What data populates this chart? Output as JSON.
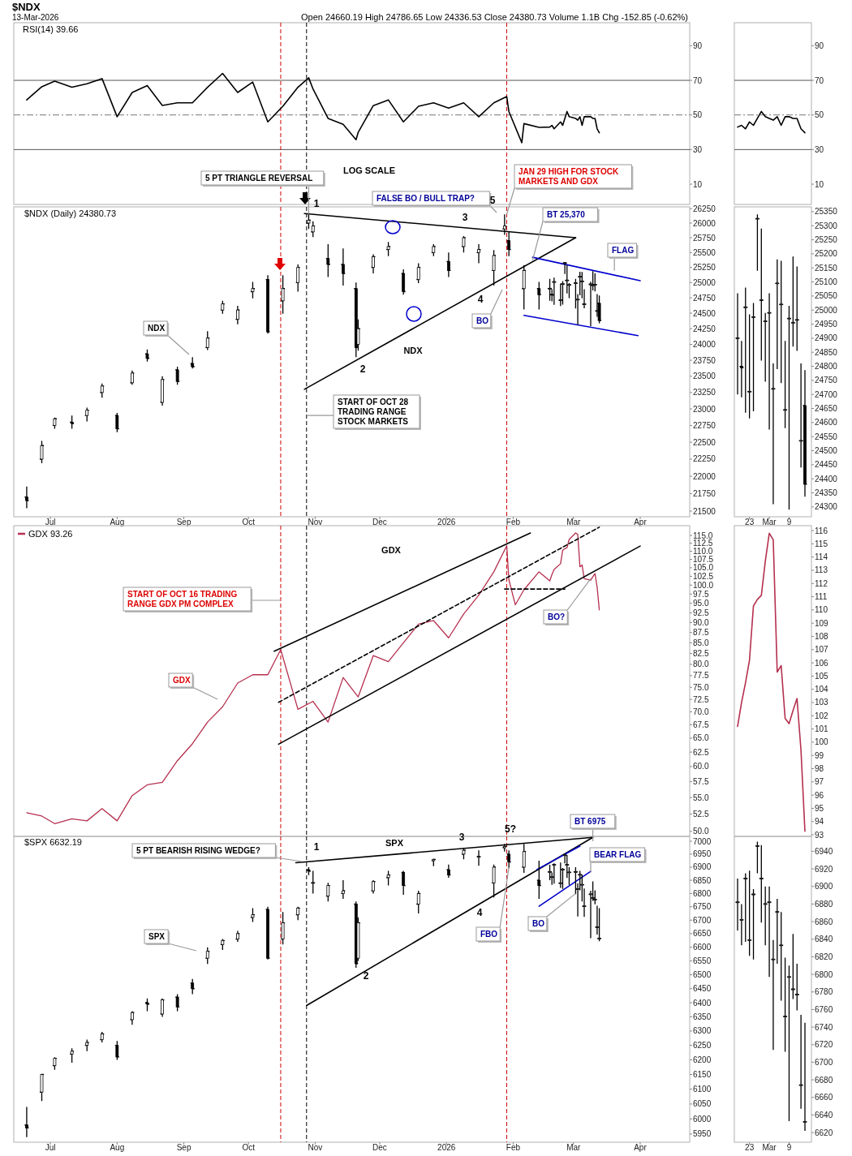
{
  "chart_data": [
    {
      "type": "line",
      "title": "$NDX",
      "subtitle": "13-Mar-2026",
      "annotations": [
        "Open 24660.19 High 24786.65 Low 24336.53 Close 24380.73 Volume 1.1B Chg -152.85 (-0.62%)",
        "RSI(14) 39.66"
      ],
      "xlim": [
        "2025-06-14",
        "2026-04-24"
      ],
      "ylim": [
        -1.7,
        103.3
      ],
      "yticks": [
        10,
        30,
        50,
        70,
        90
      ],
      "series": [
        {
          "color": "#000000",
          "x": [
            "2025-06-20",
            "2025-06-27",
            "2025-07-03",
            "2025-07-11",
            "2025-07-18",
            "2025-07-25",
            "2025-08-01",
            "2025-08-08",
            "2025-08-15",
            "2025-08-22",
            "2025-08-29",
            "2025-09-05",
            "2025-09-12",
            "2025-09-19",
            "2025-09-26",
            "2025-10-03",
            "2025-10-10",
            "2025-10-17",
            "2025-10-24",
            "2025-10-29",
            "2025-10-31",
            "2025-11-07",
            "2025-11-14",
            "2025-11-20",
            "2025-11-21",
            "2025-11-28",
            "2025-12-05",
            "2025-12-12",
            "2025-12-19",
            "2025-12-26",
            "2026-01-02",
            "2026-01-09",
            "2026-01-16",
            "2026-01-23",
            "2026-01-29",
            "2026-01-30",
            "2026-02-05",
            "2026-02-06",
            "2026-02-13",
            "2026-02-18",
            "2026-02-19",
            "2026-02-20",
            "2026-02-23",
            "2026-02-24",
            "2026-02-25",
            "2026-02-26",
            "2026-02-27",
            "2026-03-02",
            "2026-03-03",
            "2026-03-04",
            "2026-03-05",
            "2026-03-06",
            "2026-03-09",
            "2026-03-10",
            "2026-03-11",
            "2026-03-12",
            "2026-03-13"
          ],
          "values": [
            58.7,
            66.3,
            69.5,
            66,
            68,
            71,
            49,
            63,
            67,
            55.5,
            57,
            57,
            66,
            74,
            63,
            69,
            46,
            55,
            66,
            71.5,
            65,
            48,
            44.6,
            35.7,
            40,
            55.4,
            58.7,
            46,
            55,
            57,
            54,
            57,
            49,
            57,
            60.6,
            52,
            34,
            45,
            42.8,
            43,
            44,
            42,
            46,
            44,
            48,
            52,
            49,
            48,
            47,
            49,
            44,
            49,
            49,
            48,
            48,
            42,
            39.7
          ]
        }
      ],
      "ref_lines": [
        {
          "axis": "y",
          "value": 70,
          "color": "#555555",
          "line_style": "solid"
        },
        {
          "axis": "y",
          "value": 50,
          "color": "#777777",
          "line_style": "dashed"
        },
        {
          "axis": "y",
          "value": 30,
          "color": "#555555",
          "line_style": "solid"
        },
        {
          "axis": "x",
          "value": "2025-10-16",
          "color": "#cc0000",
          "line_style": "dashed"
        },
        {
          "axis": "x",
          "value": "2025-10-28",
          "color": "#000000",
          "line_style": "dashed"
        },
        {
          "axis": "x",
          "value": "2026-01-29",
          "color": "#cc0000",
          "line_style": "dashed"
        }
      ]
    },
    {
      "type": "candlestick",
      "title": "$NDX (Daily) 24380.73",
      "log": "y",
      "color": "#000000",
      "xlim": [
        "2025-06-14",
        "2026-04-24"
      ],
      "ylim": [
        21420,
        26280
      ],
      "xticks": [
        {
          "value": "2025-07-01",
          "label": "Jul"
        },
        {
          "value": "2025-08-01",
          "label": "Aug"
        },
        {
          "value": "2025-09-01",
          "label": "Sep"
        },
        {
          "value": "2025-10-01",
          "label": "Oct"
        },
        {
          "value": "2025-11-01",
          "label": "Nov"
        },
        {
          "value": "2025-12-01",
          "label": "Dec"
        },
        {
          "value": "2026-01-01",
          "label": "2026"
        },
        {
          "value": "2026-02-01",
          "label": "Feb"
        },
        {
          "value": "2026-03-01",
          "label": "Mar"
        },
        {
          "value": "2026-04-01",
          "label": "Apr"
        }
      ],
      "yticks": [
        21500,
        21750,
        22000,
        22250,
        22500,
        22750,
        23000,
        23250,
        23500,
        23750,
        24000,
        24250,
        24500,
        24750,
        25000,
        25250,
        25500,
        25750,
        26000,
        26250
      ],
      "x": [
        "2025-06-20",
        "2025-06-27",
        "2025-07-03",
        "2025-07-11",
        "2025-07-18",
        "2025-07-25",
        "2025-08-01",
        "2025-08-08",
        "2025-08-15",
        "2025-08-22",
        "2025-08-29",
        "2025-09-05",
        "2025-09-12",
        "2025-09-19",
        "2025-09-26",
        "2025-10-03",
        "2025-10-10",
        "2025-10-17",
        "2025-10-24",
        "2025-10-29",
        "2025-10-31",
        "2025-11-07",
        "2025-11-14",
        "2025-11-20",
        "2025-11-21",
        "2025-11-28",
        "2025-12-05",
        "2025-12-12",
        "2025-12-19",
        "2025-12-26",
        "2026-01-02",
        "2026-01-09",
        "2026-01-16",
        "2026-01-23",
        "2026-01-28",
        "2026-01-30",
        "2026-02-06",
        "2026-02-13",
        "2026-02-18",
        "2026-02-19",
        "2026-02-20",
        "2026-02-23",
        "2026-02-24",
        "2026-02-25",
        "2026-02-26",
        "2026-02-27",
        "2026-03-02",
        "2026-03-03",
        "2026-03-04",
        "2026-03-05",
        "2026-03-06",
        "2026-03-09",
        "2026-03-10",
        "2026-03-11",
        "2026-03-12",
        "2026-03-13"
      ],
      "ohlc": [
        [
          21700,
          21850,
          21540,
          21650
        ],
        [
          22250,
          22520,
          22190,
          22450
        ],
        [
          22750,
          22870,
          22700,
          22850
        ],
        [
          22800,
          22900,
          22700,
          22780
        ],
        [
          22900,
          23020,
          22810,
          22980
        ],
        [
          23250,
          23390,
          23170,
          23350
        ],
        [
          22900,
          22940,
          22650,
          22700
        ],
        [
          23400,
          23590,
          23370,
          23550
        ],
        [
          23850,
          23920,
          23730,
          23780
        ],
        [
          23100,
          23500,
          23050,
          23450
        ],
        [
          23600,
          23650,
          23370,
          23420
        ],
        [
          23700,
          23800,
          23620,
          23650
        ],
        [
          23950,
          24210,
          23910,
          24100
        ],
        [
          24550,
          24700,
          24490,
          24650
        ],
        [
          24400,
          24620,
          24320,
          24550
        ],
        [
          24850,
          25010,
          24740,
          24900
        ],
        [
          25050,
          25120,
          24170,
          24200
        ],
        [
          24700,
          25120,
          24490,
          24900
        ],
        [
          25000,
          25300,
          24850,
          25250
        ],
        [
          26000,
          26180,
          25900,
          26050
        ],
        [
          25850,
          26030,
          25760,
          25950
        ],
        [
          25400,
          25640,
          25090,
          25300
        ],
        [
          25300,
          25570,
          24950,
          25150
        ],
        [
          24900,
          25000,
          23800,
          23950
        ],
        [
          24000,
          24400,
          23900,
          24250
        ],
        [
          25250,
          25470,
          25150,
          25430
        ],
        [
          25550,
          25680,
          25440,
          25600
        ],
        [
          25150,
          25220,
          24800,
          24850
        ],
        [
          25050,
          25320,
          24990,
          25250
        ],
        [
          25500,
          25640,
          25440,
          25600
        ],
        [
          25350,
          25500,
          25090,
          25200
        ],
        [
          25600,
          25780,
          25500,
          25750
        ],
        [
          25500,
          25640,
          25320,
          25550
        ],
        [
          25200,
          25540,
          24950,
          25450
        ],
        [
          25900,
          26150,
          25800,
          25950
        ],
        [
          25700,
          25860,
          25440,
          25550
        ],
        [
          24900,
          25290,
          24560,
          25200
        ],
        [
          24900,
          25010,
          24560,
          24800
        ],
        [
          24900,
          25060,
          24700,
          24900
        ],
        [
          24800,
          24890,
          24690,
          24795
        ],
        [
          25010,
          25080,
          24635,
          25010
        ],
        [
          24710,
          24985,
          24615,
          24710
        ],
        [
          24975,
          25025,
          24640,
          24975
        ],
        [
          25325,
          25340,
          25140,
          25325
        ],
        [
          25035,
          25290,
          24820,
          25035
        ],
        [
          24960,
          24990,
          24745,
          24960
        ],
        [
          24990,
          25060,
          24575,
          24990
        ],
        [
          24720,
          24810,
          24310,
          24720
        ],
        [
          25095,
          25180,
          24790,
          25095
        ],
        [
          25020,
          25175,
          24740,
          25020
        ],
        [
          24645,
          24890,
          24580,
          24645
        ],
        [
          24970,
          25015,
          24290,
          24970
        ],
        [
          24955,
          25190,
          24870,
          24955
        ],
        [
          24965,
          25155,
          24855,
          24965
        ],
        [
          24535,
          24810,
          24440,
          24535
        ],
        [
          24660.19,
          24786.65,
          24336.53,
          24380.73
        ]
      ],
      "series": [
        {
          "type": "line",
          "color": "#000000",
          "line_style": "solid",
          "x": [
            "2025-10-27",
            "2026-03-02"
          ],
          "values": [
            26165,
            25750
          ]
        },
        {
          "type": "line",
          "color": "#000000",
          "line_style": "solid",
          "x": [
            "2025-10-27",
            "2026-03-02"
          ],
          "values": [
            23300,
            25750
          ]
        },
        {
          "type": "line",
          "color": "#0000cc",
          "line_style": "solid",
          "x": [
            "2026-02-10",
            "2026-04-01"
          ],
          "values": [
            25420,
            25030
          ]
        },
        {
          "type": "line",
          "color": "#0000cc",
          "line_style": "solid",
          "x": [
            "2026-02-06",
            "2026-03-31"
          ],
          "values": [
            24465,
            24140
          ]
        }
      ],
      "ref_lines": [
        {
          "axis": "x",
          "value": "2025-10-16",
          "color": "#cc0000",
          "line_style": "dashed"
        },
        {
          "axis": "x",
          "value": "2025-10-28",
          "color": "#000000",
          "line_style": "dashed"
        },
        {
          "axis": "x",
          "value": "2026-01-29",
          "color": "#cc0000",
          "line_style": "dashed"
        }
      ],
      "annotations": [
        "LOG SCALE",
        {
          "text": "5 PT TRIANGLE REVERSAL",
          "x": "2025-10-29",
          "y": 26150
        },
        {
          "text": "JAN 29 HIGH FOR STOCK MARKETS AND GDX",
          "x": "2026-01-29",
          "y": 26150
        },
        "FALSE BO / BULL TRAP?",
        {
          "text": "BT 25,370",
          "x": "2026-02-10",
          "y": 25370
        },
        {
          "text": "FLAG",
          "x": "2026-03-20",
          "y": 25200
        },
        "BO",
        "NDX",
        {
          "text": "START OF OCT 28 TRADING RANGE STOCK MARKETS",
          "x": "2025-10-28",
          "y": 22900
        },
        "NDX",
        {
          "text": "1",
          "x": "2025-10-29",
          "y": 26180
        },
        {
          "text": "2",
          "x": "2025-11-20",
          "y": 23800
        },
        {
          "text": "3",
          "x": "2026-01-09",
          "y": 25780
        },
        "4",
        {
          "text": "5",
          "x": "2026-01-28",
          "y": 26150
        }
      ]
    },
    {
      "type": "line",
      "log": "y",
      "legend": "top left",
      "xlim": [
        "2025-06-14",
        "2026-04-24"
      ],
      "ylim": [
        49.3,
        118.2
      ],
      "yticks": [
        {
          "value": 50,
          "label": "50.0"
        },
        {
          "value": 52.5,
          "label": "52.5"
        },
        {
          "value": 55,
          "label": "55.0"
        },
        {
          "value": 57.5,
          "label": "57.5"
        },
        {
          "value": 60,
          "label": "60.0"
        },
        {
          "value": 62.5,
          "label": "62.5"
        },
        {
          "value": 65,
          "label": "65.0"
        },
        {
          "value": 67.5,
          "label": "67.5"
        },
        {
          "value": 70,
          "label": "70.0"
        },
        {
          "value": 72.5,
          "label": "72.5"
        },
        {
          "value": 75,
          "label": "75.0"
        },
        {
          "value": 77.5,
          "label": "77.5"
        },
        {
          "value": 80,
          "label": "80.0"
        },
        {
          "value": 82.5,
          "label": "82.5"
        },
        {
          "value": 85,
          "label": "85.0"
        },
        {
          "value": 87.5,
          "label": "87.5"
        },
        {
          "value": 90,
          "label": "90.0"
        },
        {
          "value": 92.5,
          "label": "92.5"
        },
        {
          "value": 95,
          "label": "95.0"
        },
        {
          "value": 97.5,
          "label": "97.5"
        },
        {
          "value": 100,
          "label": "100.0"
        },
        {
          "value": 102.5,
          "label": "102.5"
        },
        {
          "value": 105,
          "label": "105.0"
        },
        {
          "value": 107.5,
          "label": "107.5"
        },
        {
          "value": 110,
          "label": "110.0"
        },
        {
          "value": 112.5,
          "label": "112.5"
        },
        {
          "value": 115,
          "label": "115.0"
        }
      ],
      "series": [
        {
          "name": "GDX 93.26",
          "color": "#b5304f",
          "x": [
            "2025-06-20",
            "2025-06-27",
            "2025-07-03",
            "2025-07-11",
            "2025-07-18",
            "2025-07-25",
            "2025-08-01",
            "2025-08-08",
            "2025-08-15",
            "2025-08-22",
            "2025-08-29",
            "2025-09-05",
            "2025-09-12",
            "2025-09-19",
            "2025-09-26",
            "2025-10-03",
            "2025-10-10",
            "2025-10-16",
            "2025-10-24",
            "2025-10-31",
            "2025-11-07",
            "2025-11-14",
            "2025-11-21",
            "2025-11-28",
            "2025-12-05",
            "2025-12-12",
            "2025-12-19",
            "2025-12-26",
            "2026-01-02",
            "2026-01-09",
            "2026-01-16",
            "2026-01-23",
            "2026-01-29",
            "2026-01-30",
            "2026-02-02",
            "2026-02-06",
            "2026-02-13",
            "2026-02-18",
            "2026-02-19",
            "2026-02-20",
            "2026-02-23",
            "2026-02-24",
            "2026-02-25",
            "2026-02-26",
            "2026-02-27",
            "2026-03-02",
            "2026-03-03",
            "2026-03-04",
            "2026-03-05",
            "2026-03-06",
            "2026-03-09",
            "2026-03-10",
            "2026-03-11",
            "2026-03-12",
            "2026-03-13"
          ],
          "values": [
            52.7,
            52.2,
            51.1,
            51.8,
            51.5,
            53.3,
            51.5,
            55.3,
            57.0,
            57.4,
            61.0,
            64.0,
            68.0,
            71.0,
            75.9,
            77.7,
            77.7,
            83.4,
            70.5,
            72.1,
            68.0,
            77.1,
            73.0,
            82.0,
            80.6,
            85.0,
            89.6,
            90.5,
            86.2,
            92.2,
            97.2,
            103.8,
            111.7,
            101.5,
            94.6,
            98.7,
            103.8,
            101.2,
            103.0,
            104.5,
            106.2,
            110.3,
            110.8,
            111.1,
            113.7,
            115.8,
            115.3,
            105.3,
            105.8,
            101.8,
            101.4,
            102.4,
            103.3,
            99.4,
            93.26
          ]
        },
        {
          "type": "line",
          "color": "#000000",
          "line_style": "solid",
          "x": [
            "2025-10-13",
            "2026-02-09"
          ],
          "values": [
            83.0,
            115.8
          ]
        },
        {
          "type": "line",
          "color": "#000000",
          "line_style": "solid",
          "x": [
            "2025-10-15",
            "2026-04-01"
          ],
          "values": [
            63.9,
            111.6
          ]
        },
        {
          "type": "line",
          "color": "#000000",
          "line_style": "dashed",
          "x": [
            "2025-10-15",
            "2026-03-13"
          ],
          "values": [
            71.9,
            117.7
          ]
        },
        {
          "type": "line",
          "color": "#000000",
          "line_style": "dashed",
          "x": [
            "2026-01-28",
            "2026-02-25"
          ],
          "values": [
            98.9,
            98.9
          ]
        }
      ],
      "ref_lines": [
        {
          "axis": "x",
          "value": "2025-10-16",
          "color": "#cc0000",
          "line_style": "dashed"
        },
        {
          "axis": "x",
          "value": "2025-10-28",
          "color": "#000000",
          "line_style": "dashed"
        },
        {
          "axis": "x",
          "value": "2026-01-29",
          "color": "#cc0000",
          "line_style": "dashed"
        }
      ],
      "annotations": [
        "GDX",
        "START OF OCT 16 TRADING RANGE GDX PM COMPLEX",
        "GDX",
        {
          "text": "BO?",
          "x": "2026-03-09",
          "y": 101.8
        }
      ]
    },
    {
      "type": "candlestick",
      "title": "$SPX 6632.19",
      "log": "y",
      "color": "#000000",
      "xlim": [
        "2025-06-14",
        "2026-04-24"
      ],
      "ylim": [
        5923,
        7019
      ],
      "xticks": [
        {
          "value": "2025-07-01",
          "label": "Jul"
        },
        {
          "value": "2025-08-01",
          "label": "Aug"
        },
        {
          "value": "2025-09-01",
          "label": "Sep"
        },
        {
          "value": "2025-10-01",
          "label": "Oct"
        },
        {
          "value": "2025-11-01",
          "label": "Nov"
        },
        {
          "value": "2025-12-01",
          "label": "Dec"
        },
        {
          "value": "2026-01-01",
          "label": "2026"
        },
        {
          "value": "2026-02-01",
          "label": "Feb"
        },
        {
          "value": "2026-03-01",
          "label": "Mar"
        },
        {
          "value": "2026-04-01",
          "label": "Apr"
        }
      ],
      "yticks": [
        5950,
        6000,
        6050,
        6100,
        6150,
        6200,
        6250,
        6300,
        6350,
        6400,
        6450,
        6500,
        6550,
        6600,
        6650,
        6700,
        6750,
        6800,
        6850,
        6900,
        6950,
        7000
      ],
      "x": [
        "2025-06-20",
        "2025-06-27",
        "2025-07-03",
        "2025-07-11",
        "2025-07-18",
        "2025-07-25",
        "2025-08-01",
        "2025-08-08",
        "2025-08-15",
        "2025-08-22",
        "2025-08-29",
        "2025-09-05",
        "2025-09-12",
        "2025-09-19",
        "2025-09-26",
        "2025-10-03",
        "2025-10-10",
        "2025-10-17",
        "2025-10-24",
        "2025-10-29",
        "2025-10-31",
        "2025-11-07",
        "2025-11-14",
        "2025-11-20",
        "2025-11-21",
        "2025-11-28",
        "2025-12-05",
        "2025-12-12",
        "2025-12-19",
        "2025-12-26",
        "2026-01-02",
        "2026-01-09",
        "2026-01-16",
        "2026-01-23",
        "2026-01-28",
        "2026-01-30",
        "2026-02-06",
        "2026-02-13",
        "2026-02-18",
        "2026-02-19",
        "2026-02-20",
        "2026-02-23",
        "2026-02-24",
        "2026-02-25",
        "2026-02-26",
        "2026-02-27",
        "2026-03-02",
        "2026-03-03",
        "2026-03-04",
        "2026-03-05",
        "2026-03-06",
        "2026-03-09",
        "2026-03-10",
        "2026-03-11",
        "2026-03-12",
        "2026-03-13"
      ],
      "ohlc": [
        [
          5980,
          6040,
          5940,
          5970
        ],
        [
          6090,
          6152,
          6060,
          6150
        ],
        [
          6180,
          6209,
          6166,
          6205
        ],
        [
          6220,
          6240,
          6190,
          6230
        ],
        [
          6250,
          6270,
          6230,
          6260
        ],
        [
          6270,
          6297,
          6260,
          6290
        ],
        [
          6250,
          6265,
          6200,
          6210
        ],
        [
          6340,
          6370,
          6322,
          6365
        ],
        [
          6400,
          6415,
          6370,
          6395
        ],
        [
          6360,
          6415,
          6350,
          6410
        ],
        [
          6420,
          6430,
          6370,
          6385
        ],
        [
          6470,
          6485,
          6430,
          6450
        ],
        [
          6560,
          6600,
          6539,
          6585
        ],
        [
          6610,
          6630,
          6590,
          6625
        ],
        [
          6630,
          6660,
          6620,
          6650
        ],
        [
          6710,
          6745,
          6693,
          6720
        ],
        [
          6740,
          6750,
          6555,
          6560
        ],
        [
          6630,
          6730,
          6610,
          6690
        ],
        [
          6720,
          6750,
          6700,
          6745
        ],
        [
          6890,
          6900,
          6870,
          6885
        ],
        [
          6840,
          6886,
          6800,
          6840
        ],
        [
          6790,
          6840,
          6770,
          6830
        ],
        [
          6800,
          6850,
          6780,
          6810
        ],
        [
          6760,
          6770,
          6525,
          6540
        ],
        [
          6560,
          6710,
          6550,
          6690
        ],
        [
          6810,
          6850,
          6800,
          6845
        ],
        [
          6860,
          6886,
          6830,
          6870
        ],
        [
          6880,
          6886,
          6795,
          6830
        ],
        [
          6760,
          6810,
          6725,
          6800
        ],
        [
          6925,
          6933,
          6904,
          6930
        ],
        [
          6890,
          6910,
          6860,
          6870
        ],
        [
          6950,
          6975,
          6930,
          6965
        ],
        [
          6940,
          6965,
          6905,
          6940
        ],
        [
          6840,
          6910,
          6785,
          6900
        ],
        [
          6975,
          6990,
          6960,
          6980
        ],
        [
          6950,
          6965,
          6895,
          6920
        ],
        [
          6900,
          6990,
          6878,
          6960
        ],
        [
          6850,
          6925,
          6780,
          6830
        ],
        [
          6882,
          6909,
          6850,
          6882
        ],
        [
          6862,
          6880,
          6833,
          6862
        ],
        [
          6909,
          6915,
          6837,
          6909
        ],
        [
          6839,
          6918,
          6821,
          6839
        ],
        [
          6891,
          6897,
          6817,
          6891
        ],
        [
          6946,
          6951,
          6915,
          6946
        ],
        [
          6909,
          6947,
          6859,
          6909
        ],
        [
          6880,
          6900,
          6833,
          6880
        ],
        [
          6882,
          6900,
          6797,
          6882
        ],
        [
          6817,
          6839,
          6714,
          6817
        ],
        [
          6871,
          6886,
          6812,
          6871
        ],
        [
          6833,
          6871,
          6770,
          6833
        ],
        [
          6752,
          6819,
          6712,
          6752
        ],
        [
          6797,
          6810,
          6633,
          6797
        ],
        [
          6783,
          6846,
          6772,
          6783
        ],
        [
          6777,
          6812,
          6759,
          6777
        ],
        [
          6674,
          6754,
          6647,
          6674
        ],
        [
          6632.19,
          6745,
          6622,
          6632.19
        ]
      ],
      "series": [
        {
          "type": "line",
          "color": "#000000",
          "line_style": "solid",
          "x": [
            "2025-10-23",
            "2026-03-10"
          ],
          "values": [
            6917,
            7015
          ]
        },
        {
          "type": "line",
          "color": "#000000",
          "line_style": "solid",
          "x": [
            "2025-10-28",
            "2026-03-10"
          ],
          "values": [
            6390,
            7015
          ]
        },
        {
          "type": "line",
          "color": "#0000cc",
          "line_style": "solid",
          "x": [
            "2026-02-12",
            "2026-03-04"
          ],
          "values": [
            6891,
            6981
          ]
        },
        {
          "type": "line",
          "color": "#0000cc",
          "line_style": "solid",
          "x": [
            "2026-02-13",
            "2026-03-09"
          ],
          "values": [
            6752,
            6884
          ]
        }
      ],
      "ref_lines": [
        {
          "axis": "x",
          "value": "2025-10-16",
          "color": "#cc0000",
          "line_style": "dashed"
        },
        {
          "axis": "x",
          "value": "2025-10-28",
          "color": "#000000",
          "line_style": "dashed"
        },
        {
          "axis": "x",
          "value": "2026-01-29",
          "color": "#cc0000",
          "line_style": "dashed"
        }
      ],
      "annotations": [
        "5 PT BEARISH RISING WEDGE?",
        "SPX",
        "SPX",
        {
          "text": "BT 6975",
          "x": "2026-03-10",
          "y": 7000
        },
        {
          "text": "BEAR FLAG",
          "x": "2026-03-09",
          "y": 6880
        },
        {
          "text": "FBO",
          "x": "2026-01-30",
          "y": 6900
        },
        {
          "text": "BO",
          "x": "2026-03-02",
          "y": 6800
        },
        {
          "text": "1",
          "x": "2025-10-29",
          "y": 6900
        },
        {
          "text": "2",
          "x": "2025-11-20",
          "y": 6525
        },
        {
          "text": "3",
          "x": "2026-01-09",
          "y": 6975
        },
        {
          "text": "4",
          "x": "2026-01-20",
          "y": 6780
        },
        {
          "text": "5?",
          "x": "2026-01-28",
          "y": 6990
        }
      ]
    },
    {
      "type": "line",
      "categories": [
        null,
        null,
        null,
        null,
        null,
        null,
        null,
        null,
        null,
        null,
        null,
        null,
        null,
        null,
        null,
        null,
        null,
        null
      ],
      "ylim": [
        -1.7,
        103.3
      ],
      "yticks": [
        10,
        30,
        50,
        70,
        90
      ],
      "series": [
        {
          "color": "#000000",
          "values": [
            43,
            44,
            42,
            46,
            44,
            48,
            52,
            49,
            48,
            47,
            49,
            44,
            49,
            49,
            48,
            48,
            42,
            39.7
          ]
        }
      ],
      "ref_lines": [
        {
          "axis": "y",
          "value": 70,
          "color": "#555555",
          "line_style": "solid"
        },
        {
          "axis": "y",
          "value": 50,
          "color": "#777777",
          "line_style": "dashed"
        },
        {
          "axis": "y",
          "value": 30,
          "color": "#555555",
          "line_style": "solid"
        }
      ]
    },
    {
      "type": "candlestick",
      "color": "#000000",
      "categories": [
        null,
        null,
        null,
        "23",
        null,
        null,
        null,
        null,
        "Mar",
        null,
        null,
        null,
        null,
        "9",
        null,
        null,
        null,
        null
      ],
      "ylim": [
        24265,
        25367
      ],
      "yticks": [
        24300,
        24350,
        24400,
        24450,
        24500,
        24550,
        24600,
        24650,
        24700,
        24750,
        24800,
        24850,
        24900,
        24950,
        25000,
        25050,
        25100,
        25150,
        25200,
        25250,
        25300,
        25350
      ],
      "ohlc": [
        [
          24900,
          25060,
          24700,
          24900
        ],
        [
          24800,
          24890,
          24690,
          24795
        ],
        [
          25010,
          25080,
          24635,
          25010
        ],
        [
          24710,
          24985,
          24615,
          24710
        ],
        [
          24975,
          25025,
          24640,
          24975
        ],
        [
          25325,
          25340,
          25140,
          25325
        ],
        [
          25035,
          25290,
          24820,
          25035
        ],
        [
          24960,
          24990,
          24745,
          24960
        ],
        [
          24990,
          25060,
          24575,
          24990
        ],
        [
          24720,
          24810,
          24310,
          24720
        ],
        [
          25095,
          25180,
          24790,
          25095
        ],
        [
          25020,
          25175,
          24740,
          25020
        ],
        [
          24645,
          24890,
          24580,
          24645
        ],
        [
          24970,
          25015,
          24290,
          24970
        ],
        [
          24955,
          25190,
          24870,
          24955
        ],
        [
          24965,
          25155,
          24855,
          24965
        ],
        [
          24535,
          24810,
          24440,
          24535
        ],
        [
          24660.19,
          24786.65,
          24336.53,
          24380.73
        ]
      ]
    },
    {
      "type": "line",
      "categories": [
        null,
        null,
        null,
        null,
        null,
        null,
        null,
        null,
        null,
        null,
        null,
        null,
        null,
        null,
        null,
        null,
        null,
        null
      ],
      "ylim": [
        92.88,
        116.37
      ],
      "yticks": [
        93,
        94,
        95,
        96,
        97,
        98,
        99,
        100,
        101,
        102,
        103,
        104,
        105,
        106,
        107,
        108,
        109,
        110,
        111,
        112,
        113,
        114,
        115,
        116
      ],
      "series": [
        {
          "color": "#b5304f",
          "values": [
            101.2,
            103.0,
            104.5,
            106.2,
            110.3,
            110.8,
            111.1,
            113.7,
            115.8,
            115.3,
            105.3,
            105.8,
            101.8,
            101.4,
            102.4,
            103.3,
            99.4,
            93.26
          ]
        }
      ]
    },
    {
      "type": "candlestick",
      "color": "#000000",
      "categories": [
        null,
        null,
        null,
        "23",
        null,
        null,
        null,
        null,
        "Mar",
        null,
        null,
        null,
        null,
        "9",
        null,
        null,
        null,
        null
      ],
      "ylim": [
        6609,
        6957
      ],
      "yticks": [
        6620,
        6640,
        6660,
        6680,
        6700,
        6720,
        6740,
        6760,
        6780,
        6800,
        6820,
        6840,
        6860,
        6880,
        6900,
        6920,
        6940
      ],
      "ohlc": [
        [
          6882,
          6909,
          6850,
          6882
        ],
        [
          6862,
          6880,
          6833,
          6862
        ],
        [
          6909,
          6915,
          6837,
          6909
        ],
        [
          6839,
          6918,
          6821,
          6839
        ],
        [
          6891,
          6897,
          6817,
          6891
        ],
        [
          6946,
          6951,
          6915,
          6946
        ],
        [
          6909,
          6947,
          6859,
          6909
        ],
        [
          6880,
          6900,
          6833,
          6880
        ],
        [
          6882,
          6900,
          6797,
          6882
        ],
        [
          6817,
          6839,
          6714,
          6817
        ],
        [
          6871,
          6886,
          6812,
          6871
        ],
        [
          6833,
          6871,
          6770,
          6833
        ],
        [
          6752,
          6819,
          6712,
          6752
        ],
        [
          6797,
          6810,
          6633,
          6797
        ],
        [
          6783,
          6846,
          6772,
          6783
        ],
        [
          6777,
          6812,
          6759,
          6777
        ],
        [
          6674,
          6754,
          6647,
          6674
        ],
        [
          6632.19,
          6745,
          6622,
          6632.19
        ]
      ]
    }
  ]
}
